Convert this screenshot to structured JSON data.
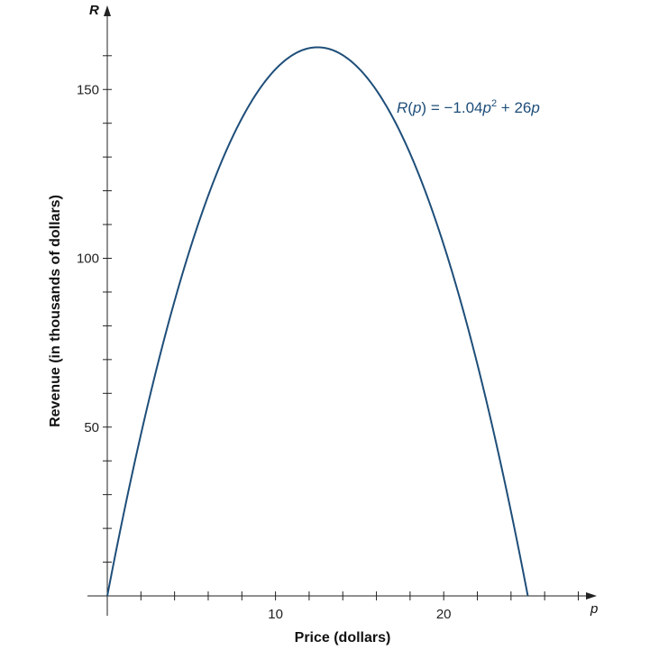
{
  "chart_data": {
    "type": "line",
    "title": "",
    "xlabel": "Price (dollars)",
    "ylabel": "Revenue (in thousands of dollars)",
    "x_axis_symbol": "p",
    "y_axis_symbol": "R",
    "xlim": [
      0,
      29
    ],
    "ylim": [
      0,
      165
    ],
    "x_ticks_labeled": [
      10,
      20
    ],
    "y_ticks_labeled": [
      50,
      100,
      150
    ],
    "x_minor_tick_step": 2,
    "y_minor_tick_step": 10,
    "grid": false,
    "series": [
      {
        "name": "R(p) = −1.04p² + 26p",
        "color": "#1e4e79",
        "function": {
          "a": -1.04,
          "b": 26,
          "c": 0
        },
        "x": [
          0,
          2.5,
          5,
          7.5,
          10,
          12.5,
          15,
          17.5,
          20,
          22.5,
          25
        ],
        "y": [
          0,
          58.5,
          104,
          136.5,
          156,
          162.5,
          156,
          136.5,
          104,
          58.5,
          0
        ]
      }
    ],
    "annotation": {
      "R": "R",
      "open": "(",
      "p": "p",
      "close": ")",
      "eq": " = −1.04",
      "p2": "p",
      "exp": "2",
      "plus": " + 26",
      "p3": "p"
    }
  }
}
